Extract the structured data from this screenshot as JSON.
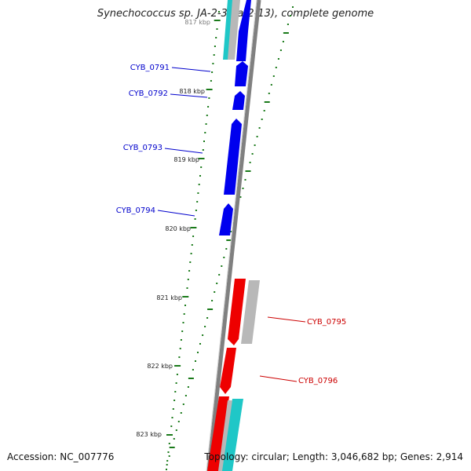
{
  "title": "Synechococcus sp. JA-2-3B'a(2-13), complete genome",
  "accession_text": "Accession: NC_007776",
  "summary_text": "Topology: circular; Length: 3,046,682 bp; Genes: 2,914",
  "kbp_labels": [
    "817 kbp",
    "818 kbp",
    "819 kbp",
    "820 kbp",
    "821 kbp",
    "822 kbp",
    "823 kbp"
  ],
  "genes": [
    {
      "label": "CYB_0791",
      "strand": "left"
    },
    {
      "label": "CYB_0792",
      "strand": "left"
    },
    {
      "label": "CYB_0793",
      "strand": "left"
    },
    {
      "label": "CYB_0794",
      "strand": "left"
    },
    {
      "label": "CYB_0795",
      "strand": "right"
    },
    {
      "label": "CYB_0796",
      "strand": "right"
    }
  ],
  "colors": {
    "forward_cds": "#0000ee",
    "reverse_cds": "#ee0000",
    "forward_label": "#0000cc",
    "reverse_label": "#cc0000",
    "feature_gray": "#b8b8b8",
    "feature_cyan": "#1fc7c7",
    "tick_green": "#1a7a1a",
    "backbone": "#808080"
  }
}
